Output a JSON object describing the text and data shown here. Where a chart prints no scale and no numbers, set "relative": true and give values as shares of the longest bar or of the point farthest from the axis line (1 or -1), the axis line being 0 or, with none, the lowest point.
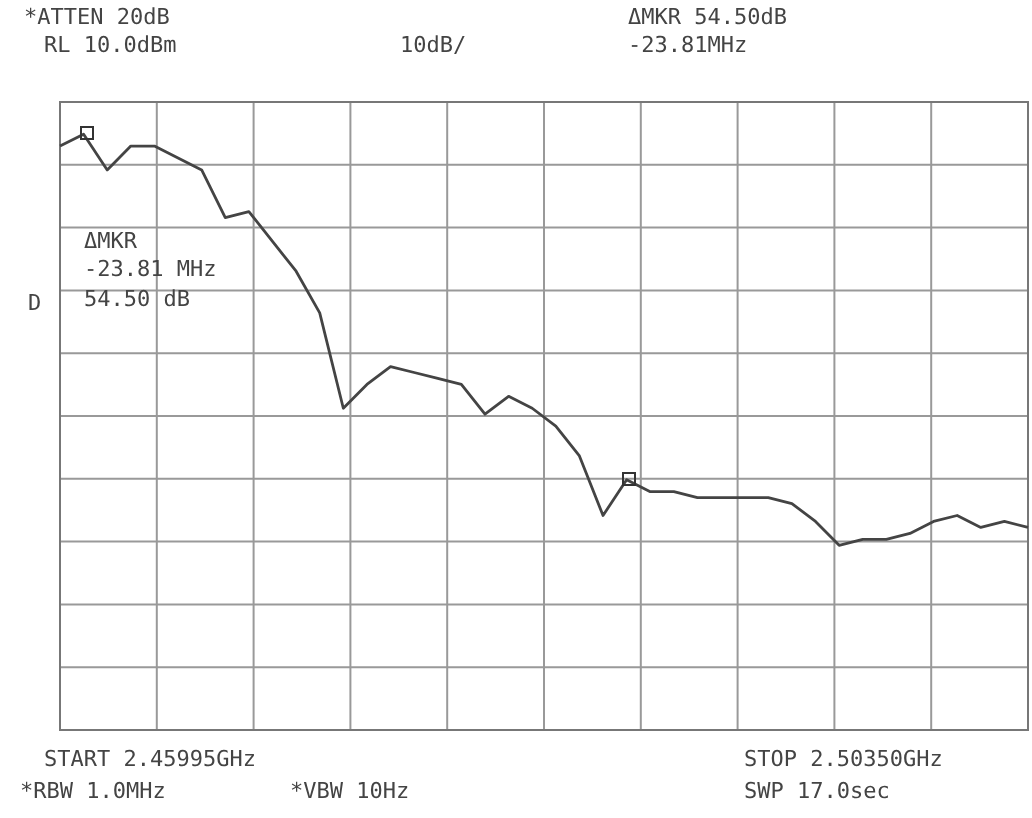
{
  "chart_data": {
    "type": "line",
    "relative": true,
    "annotations": [
      "*ATTEN 20dB",
      "RL 10.0dBm",
      "10dB/",
      "ΔMKR 54.50dB",
      "-23.81MHz",
      "ΔMKR",
      "-23.81 MHz",
      "54.50 dB",
      "D",
      "START 2.45995GHz",
      "STOP 2.50350GHz",
      "*RBW 1.0MHz",
      "*VBW 10Hz",
      "SWP 17.0sec"
    ],
    "categories": [
      null,
      null,
      null,
      null,
      null,
      null,
      null,
      null,
      null,
      null,
      null,
      null,
      null,
      null,
      null,
      null,
      null,
      null,
      null,
      null,
      null,
      null,
      null,
      null,
      null,
      null,
      null,
      null,
      null,
      null,
      null,
      null,
      null,
      null,
      null,
      null,
      null,
      null,
      null,
      null,
      null,
      null
    ],
    "grid": true,
    "legend": false,
    "marker": "none",
    "line_style": "solid",
    "series": [
      {
        "color": "#444444",
        "values": [
          0.98,
          1,
          0.94,
          0.98,
          0.98,
          0.96,
          0.94,
          0.86,
          0.87,
          0.82,
          0.77,
          0.7,
          0.54,
          0.58,
          0.61,
          0.6,
          0.59,
          0.58,
          0.53,
          0.56,
          0.54,
          0.51,
          0.46,
          0.36,
          0.42,
          0.4,
          0.4,
          0.39,
          0.39,
          0.39,
          0.39,
          0.38,
          0.35,
          0.31,
          0.32,
          0.32,
          0.33,
          0.35,
          0.36,
          0.34,
          0.35,
          0.34
        ]
      }
    ]
  }
}
